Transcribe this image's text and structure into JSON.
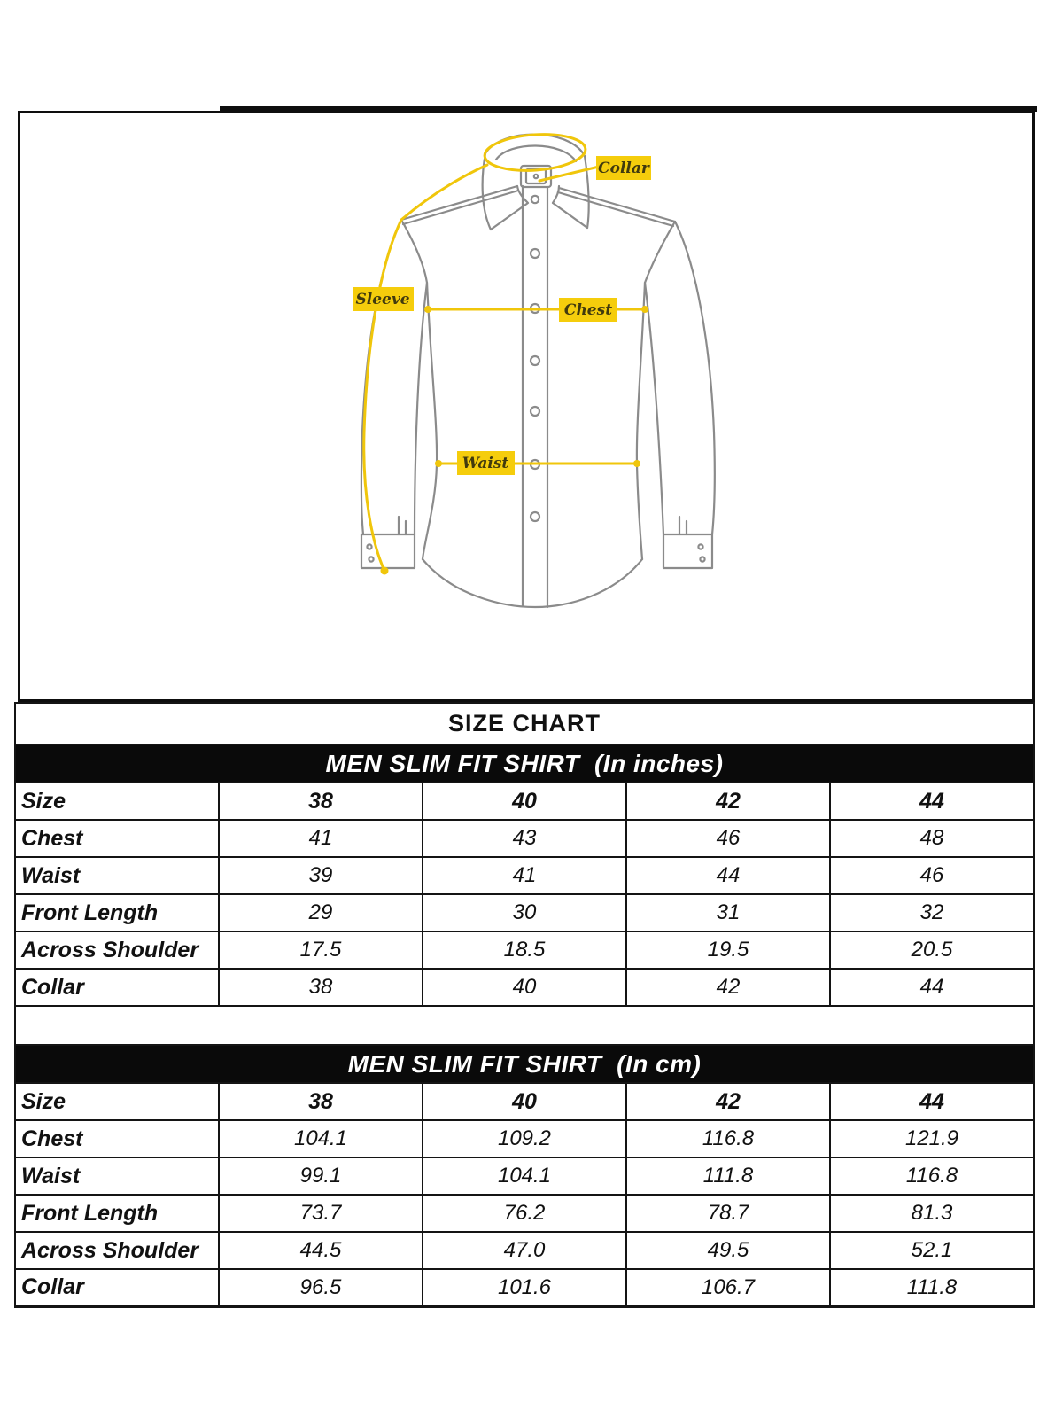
{
  "diagram": {
    "labels": {
      "collar": "Collar",
      "sleeve": "Sleeve",
      "chest": "Chest",
      "waist": "Waist"
    },
    "colors": {
      "highlight_yellow": "#F0C60B",
      "label_box_yellow": "#F5CD0C",
      "label_text": "#413a0e",
      "shirt_outline_gray": "#8b8b8b",
      "frame_black": "#0e0e0e"
    }
  },
  "size_chart": {
    "title": "SIZE CHART",
    "banner_bg": "#0a0a0a",
    "tables": [
      {
        "banner": "MEN SLIM FIT SHIRT  (In inches)",
        "header_label": "Size",
        "sizes": [
          "38",
          "40",
          "42",
          "44"
        ],
        "rows": [
          {
            "label": "Chest",
            "values": [
              "41",
              "43",
              "46",
              "48"
            ]
          },
          {
            "label": "Waist",
            "values": [
              "39",
              "41",
              "44",
              "46"
            ]
          },
          {
            "label": "Front Length",
            "values": [
              "29",
              "30",
              "31",
              "32"
            ]
          },
          {
            "label": "Across Shoulder",
            "values": [
              "17.5",
              "18.5",
              "19.5",
              "20.5"
            ]
          },
          {
            "label": "Collar",
            "values": [
              "38",
              "40",
              "42",
              "44"
            ]
          }
        ]
      },
      {
        "banner": "MEN SLIM FIT SHIRT  (In cm)",
        "header_label": "Size",
        "sizes": [
          "38",
          "40",
          "42",
          "44"
        ],
        "rows": [
          {
            "label": "Chest",
            "values": [
              "104.1",
              "109.2",
              "116.8",
              "121.9"
            ]
          },
          {
            "label": "Waist",
            "values": [
              "99.1",
              "104.1",
              "111.8",
              "116.8"
            ]
          },
          {
            "label": "Front Length",
            "values": [
              "73.7",
              "76.2",
              "78.7",
              "81.3"
            ]
          },
          {
            "label": "Across Shoulder",
            "values": [
              "44.5",
              "47.0",
              "49.5",
              "52.1"
            ]
          },
          {
            "label": "Collar",
            "values": [
              "96.5",
              "101.6",
              "106.7",
              "111.8"
            ]
          }
        ]
      }
    ]
  }
}
